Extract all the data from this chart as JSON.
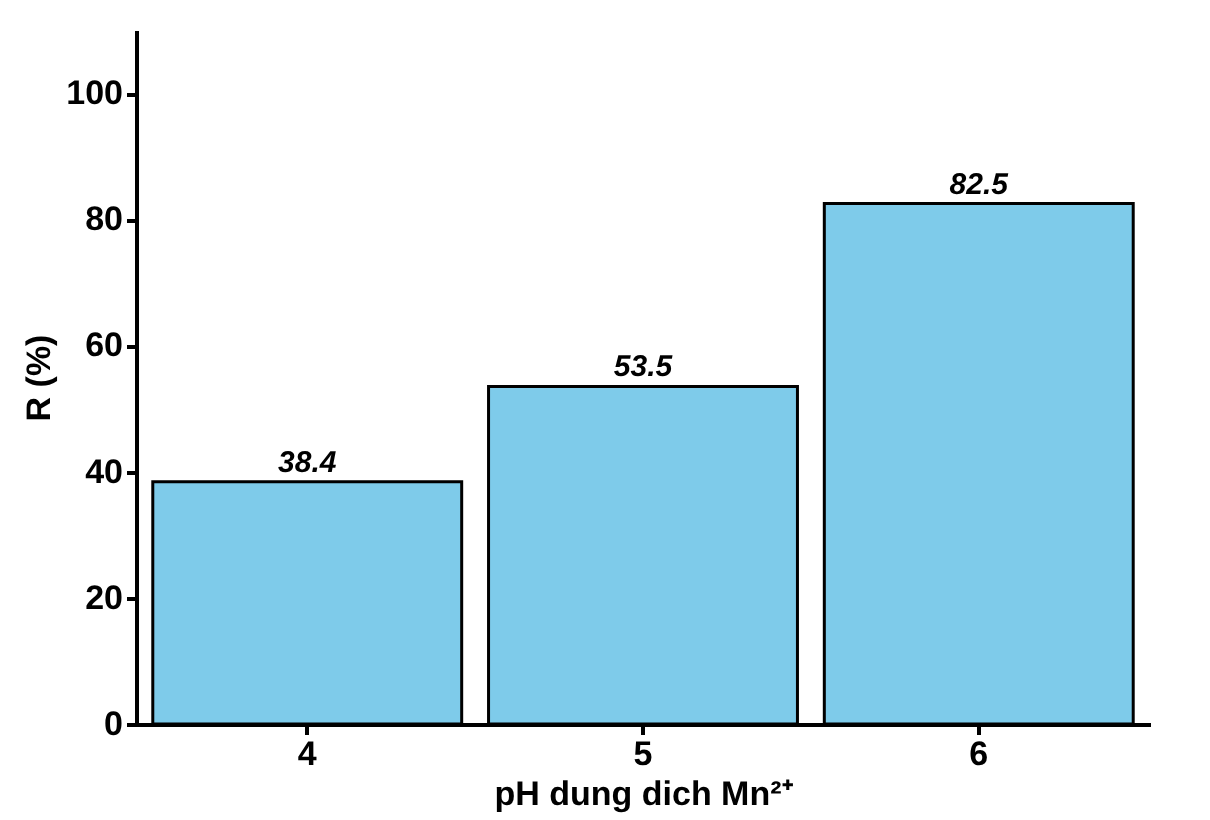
{
  "chart_data": {
    "type": "bar",
    "xlabel": "pH dung dich Mn²⁺",
    "ylabel": "R (%)",
    "categories": [
      "4",
      "5",
      "6"
    ],
    "values": [
      38.4,
      53.5,
      82.5
    ],
    "color": "#7ecbea",
    "ylim": [
      0,
      110
    ],
    "yticks": [
      0,
      20,
      40,
      60,
      80,
      100
    ],
    "grid": false,
    "data_labels": true
  }
}
